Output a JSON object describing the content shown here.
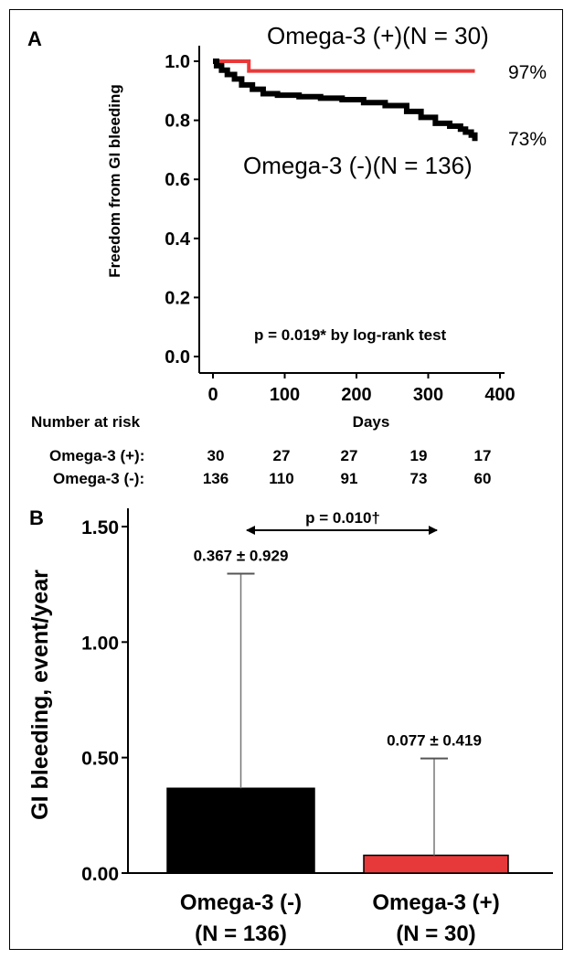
{
  "panel_a": {
    "letter": "A",
    "chart_data": {
      "type": "line",
      "ylabel": "Freedom from GI bleeding",
      "xlabel": "Days",
      "xlim": [
        0,
        400
      ],
      "ylim": [
        0,
        1.0
      ],
      "x_ticks": [
        "0",
        "100",
        "200",
        "300",
        "400"
      ],
      "y_ticks": [
        "0.0",
        "0.2",
        "0.4",
        "0.6",
        "0.8",
        "1.0"
      ],
      "series": [
        {
          "name": "Omega-3 (+)(N = 30)",
          "color": "#e8393a",
          "end_label": "97%",
          "x": [
            0,
            50,
            50,
            365
          ],
          "y": [
            1.0,
            1.0,
            0.967,
            0.967
          ]
        },
        {
          "name": "Omega-3 (-)(N = 136)",
          "color": "#000000",
          "end_label": "73%",
          "x": [
            0,
            5,
            12,
            20,
            30,
            40,
            55,
            70,
            90,
            120,
            150,
            180,
            210,
            240,
            270,
            290,
            310,
            330,
            345,
            352,
            360,
            365
          ],
          "y": [
            1.0,
            0.985,
            0.97,
            0.955,
            0.94,
            0.92,
            0.905,
            0.89,
            0.885,
            0.88,
            0.875,
            0.87,
            0.86,
            0.85,
            0.83,
            0.81,
            0.79,
            0.78,
            0.77,
            0.76,
            0.75,
            0.73
          ]
        }
      ],
      "annotation": "p = 0.019* by log-rank test"
    },
    "risk_table": {
      "title": "Number at risk",
      "rows": [
        {
          "label": "Omega-3 (+):",
          "values": [
            "30",
            "27",
            "27",
            "19",
            "17"
          ]
        },
        {
          "label": "Omega-3 (-):",
          "values": [
            "136",
            "110",
            "91",
            "73",
            "60"
          ]
        }
      ]
    }
  },
  "panel_b": {
    "letter": "B",
    "chart_data": {
      "type": "bar",
      "ylabel": "GI bleeding, event/year",
      "ylim": [
        0,
        1.5
      ],
      "y_ticks": [
        "0.00",
        "0.50",
        "1.00",
        "1.50"
      ],
      "categories": [
        {
          "line1": "Omega-3 (-)",
          "line2": "(N = 136)"
        },
        {
          "line1": "Omega-3 (+)",
          "line2": "(N = 30)"
        }
      ],
      "values": [
        0.367,
        0.077
      ],
      "error_upper": [
        1.296,
        0.496
      ],
      "bar_colors": [
        "#000000",
        "#e8393a"
      ],
      "data_labels": [
        "0.367 ± 0.929",
        "0.077 ± 0.419"
      ],
      "comparison": "p = 0.010†"
    }
  }
}
